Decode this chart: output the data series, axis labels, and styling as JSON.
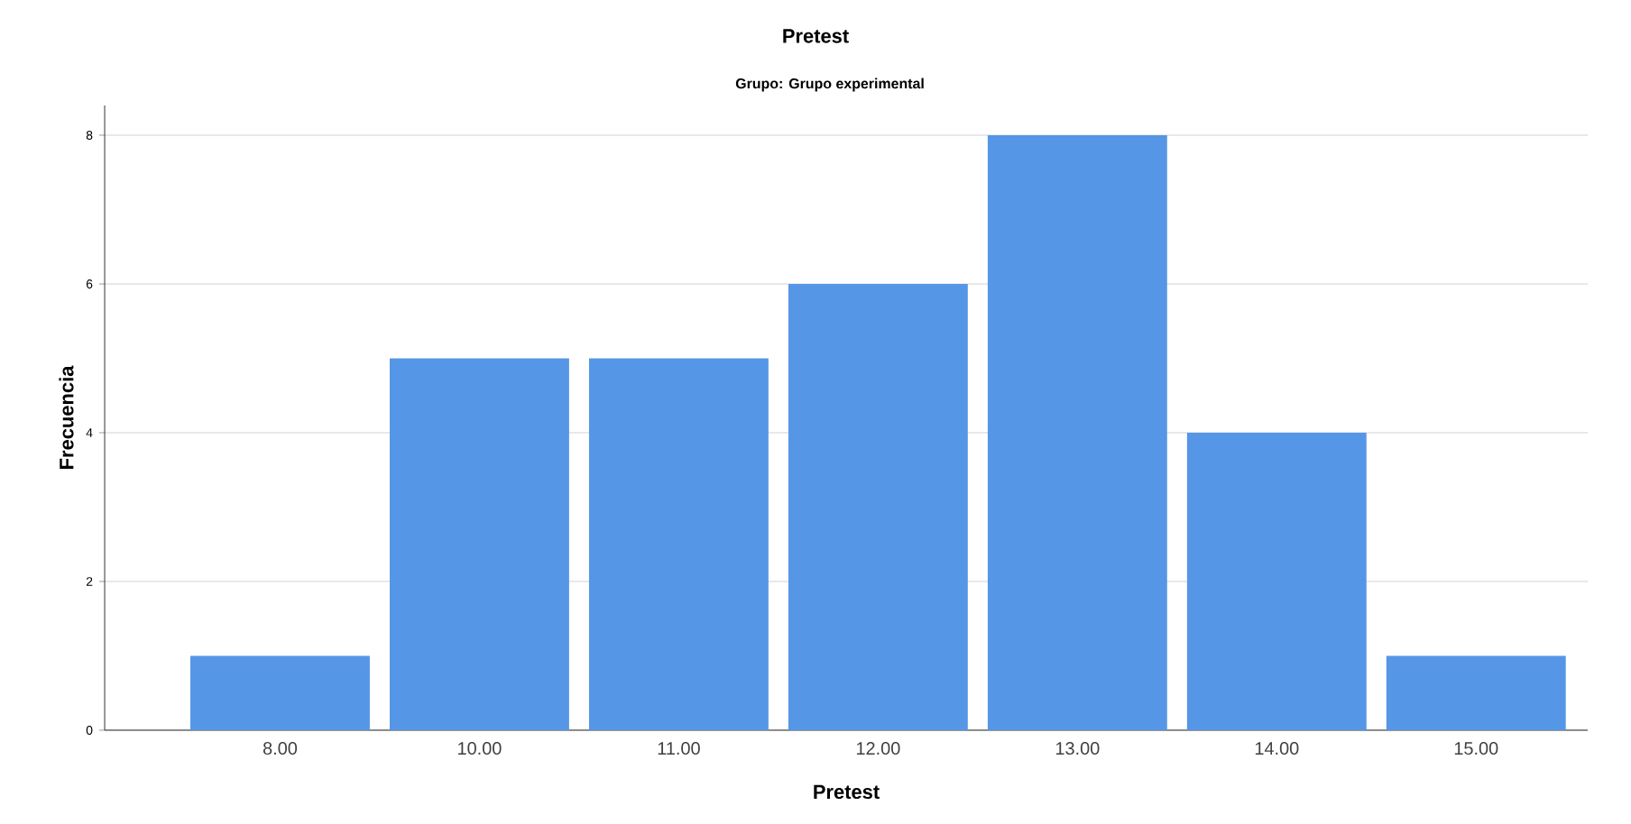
{
  "chart_data": {
    "type": "bar",
    "title": "Pretest",
    "subtitle": "Grupo: Grupo experimental",
    "xlabel": "Pretest",
    "ylabel": "Frecuencia",
    "categories": [
      "8.00",
      "10.00",
      "11.00",
      "12.00",
      "13.00",
      "14.00",
      "15.00"
    ],
    "values": [
      1,
      5,
      5,
      6,
      8,
      4,
      1
    ],
    "color": "#5596e6",
    "ylim": [
      0,
      8.4
    ],
    "yticks": [
      0,
      2,
      4,
      6,
      8
    ],
    "grid": "y"
  }
}
